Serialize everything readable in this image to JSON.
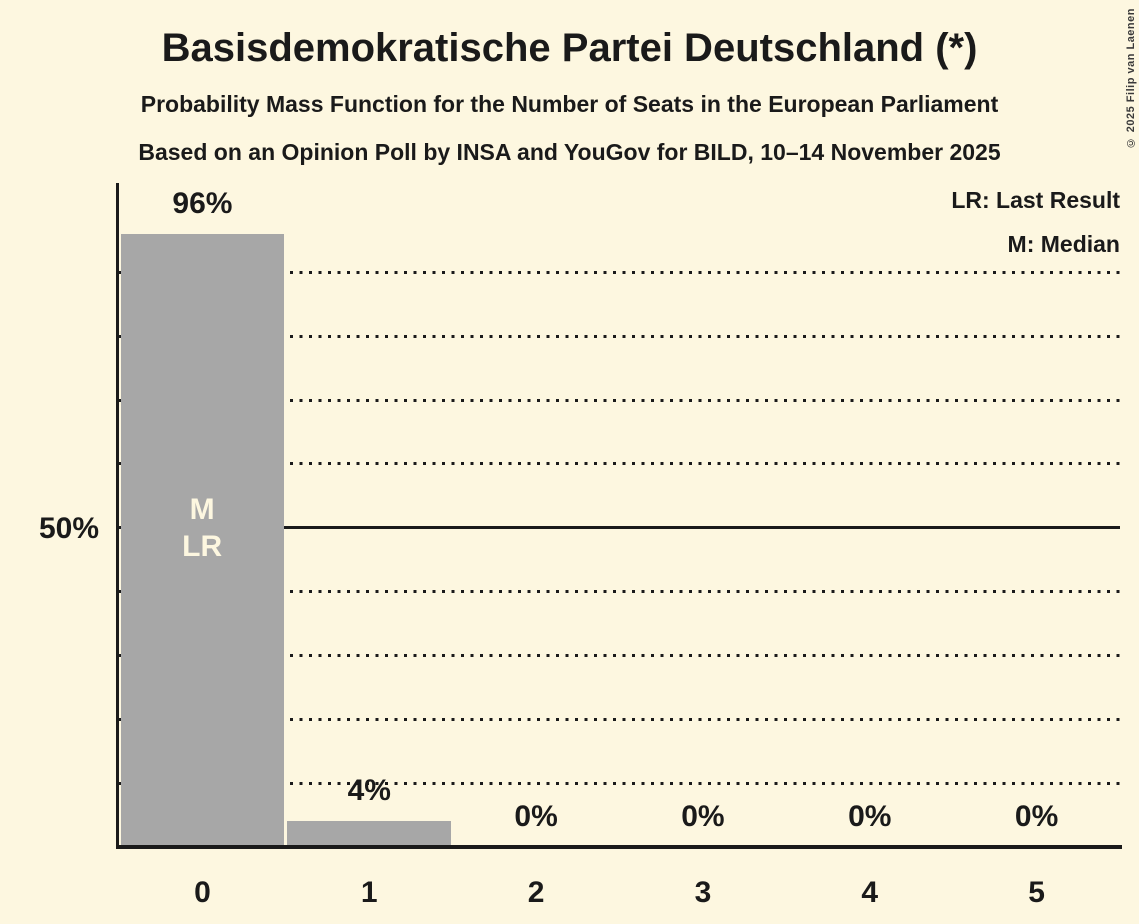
{
  "header": {
    "title": "Basisdemokratische Partei Deutschland (*)",
    "subtitle": "Probability Mass Function for the Number of Seats in the European Parliament",
    "source_line": "Based on an Opinion Poll by INSA and YouGov for BILD, 10–14 November 2025"
  },
  "legend": {
    "last_result": "LR: Last Result",
    "median": "M: Median"
  },
  "y_axis": {
    "label": "50%",
    "labeled_percent": 50
  },
  "copyright": "© 2025 Filip van Laenen",
  "colors": {
    "background": "#fdf7e0",
    "bar": "#a7a7a7",
    "text": "#1a1a1a",
    "bar_annotation_text": "#fdf7e0"
  },
  "chart_data": {
    "type": "bar",
    "title": "Probability Mass Function for the Number of Seats in the European Parliament",
    "categories": [
      "0",
      "1",
      "2",
      "3",
      "4",
      "5"
    ],
    "values": [
      96,
      4,
      0,
      0,
      0,
      0
    ],
    "value_labels": [
      "96%",
      "4%",
      "0%",
      "0%",
      "0%",
      "0%"
    ],
    "xlabel": "",
    "ylabel": "",
    "ylim": [
      0,
      104
    ],
    "grid": true,
    "gridlines": {
      "dotted_percents": [
        10,
        20,
        30,
        40,
        60,
        70,
        80,
        90
      ],
      "solid_percents": [
        50
      ]
    },
    "legend_position": "top-right",
    "annotations": [
      {
        "category_index": 0,
        "lines": [
          "M",
          "LR"
        ]
      }
    ]
  }
}
